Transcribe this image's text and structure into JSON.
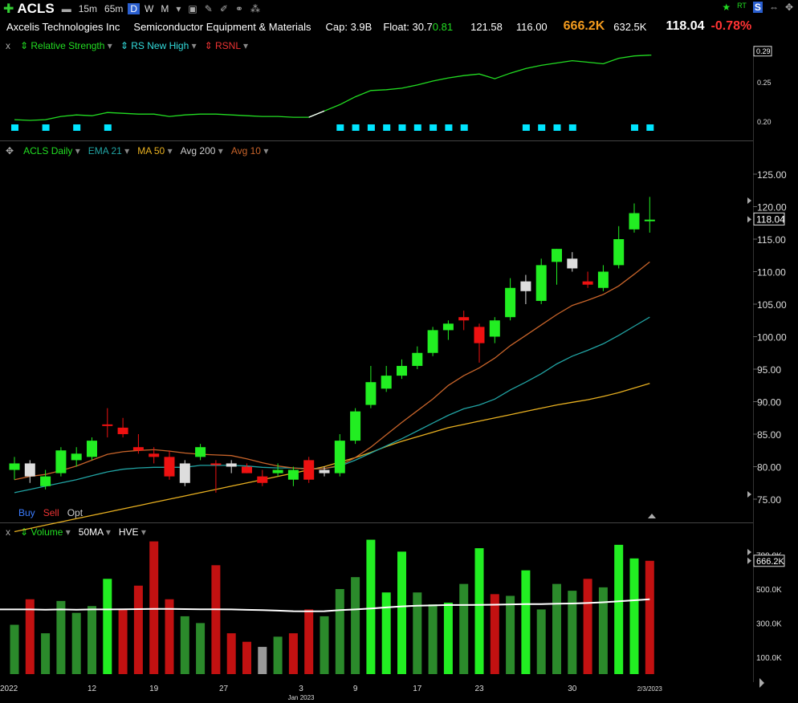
{
  "header": {
    "symbol": "ACLS",
    "timeframes": [
      "15m",
      "65m",
      "D",
      "W",
      "M"
    ],
    "active_timeframe": "D",
    "icons": [
      "plus-icon",
      "chart-type-icon",
      "tv-icon",
      "edit-icon",
      "pencil-icon",
      "link-icon",
      "share-icon"
    ],
    "right_icons": [
      "star-icon",
      "rt-icon",
      "s-icon",
      "pin-icon",
      "move-icon"
    ]
  },
  "info": {
    "company": "Axcelis Technologies Inc",
    "industry": "Semiconductor Equipment & Materials",
    "cap": "Cap: 3.9B",
    "float": "Float: 30.7",
    "float_change": "0.81",
    "high": "121.58",
    "low": "116.00",
    "volume": "666.2K",
    "avg_volume": "632.5K",
    "price": "118.04",
    "change_pct": "-0.78%"
  },
  "rs_panel": {
    "close_label": "x",
    "items": [
      "Relative Strength",
      "RS New High",
      "RSNL"
    ],
    "axis": [
      "0.25",
      "0.20"
    ],
    "current": "0.29",
    "colors": {
      "line": "#22dd22",
      "newhigh": "#00e5ff",
      "rsnl": "#e03030"
    }
  },
  "price_panel": {
    "items": [
      "ACLS Daily",
      "EMA 21",
      "MA 50",
      "Avg 200",
      "Avg 10"
    ],
    "axis": [
      "125.00",
      "120.00",
      "115.00",
      "110.00",
      "105.00",
      "100.00",
      "95.00",
      "90.00",
      "85.00",
      "80.00",
      "75.00"
    ],
    "current": "118.04",
    "buttons": [
      "Buy",
      "Sell",
      "Opt"
    ],
    "colors": {
      "up": "#22ee22",
      "down": "#ee1111",
      "neutral": "#dddddd",
      "ema21": "#21a3a3",
      "ma50": "#e8b020",
      "avg10": "#c8642a"
    }
  },
  "volume_panel": {
    "close_label": "x",
    "items": [
      "Volume",
      "50MA",
      "HVE"
    ],
    "axis": [
      "700.0K",
      "500.0K",
      "300.0K",
      "100.0K"
    ],
    "current": "666.2K"
  },
  "x_axis": {
    "labels": [
      "2022",
      "12",
      "19",
      "27",
      "3",
      "9",
      "17",
      "23",
      "30",
      "2/3/2023"
    ],
    "sublabel": "Jan 2023"
  },
  "chart_data": {
    "type": "candlestick",
    "candles": [
      {
        "o": 79.5,
        "h": 81.5,
        "l": 78.0,
        "c": 80.5,
        "color": "up"
      },
      {
        "o": 80.5,
        "h": 81.0,
        "l": 77.5,
        "c": 78.5,
        "color": "neutral"
      },
      {
        "o": 77.0,
        "h": 79.5,
        "l": 76.5,
        "c": 78.5,
        "color": "up"
      },
      {
        "o": 79.0,
        "h": 83.0,
        "l": 78.5,
        "c": 82.5,
        "color": "up"
      },
      {
        "o": 81.0,
        "h": 83.0,
        "l": 80.0,
        "c": 82.0,
        "color": "up"
      },
      {
        "o": 81.5,
        "h": 84.5,
        "l": 81.0,
        "c": 84.0,
        "color": "up"
      },
      {
        "o": 86.5,
        "h": 89.0,
        "l": 84.5,
        "c": 86.5,
        "color": "down"
      },
      {
        "o": 86.0,
        "h": 87.5,
        "l": 84.5,
        "c": 85.0,
        "color": "down"
      },
      {
        "o": 83.0,
        "h": 85.0,
        "l": 82.0,
        "c": 82.5,
        "color": "down"
      },
      {
        "o": 82.0,
        "h": 83.0,
        "l": 80.5,
        "c": 81.5,
        "color": "down"
      },
      {
        "o": 81.5,
        "h": 82.5,
        "l": 78.0,
        "c": 78.5,
        "color": "down"
      },
      {
        "o": 77.5,
        "h": 81.0,
        "l": 77.0,
        "c": 80.5,
        "color": "neutral"
      },
      {
        "o": 81.5,
        "h": 83.5,
        "l": 81.0,
        "c": 83.0,
        "color": "up"
      },
      {
        "o": 80.5,
        "h": 81.0,
        "l": 76.0,
        "c": 80.5,
        "color": "down"
      },
      {
        "o": 80.0,
        "h": 81.0,
        "l": 79.0,
        "c": 80.5,
        "color": "neutral"
      },
      {
        "o": 80.0,
        "h": 80.5,
        "l": 79.0,
        "c": 79.0,
        "color": "down"
      },
      {
        "o": 78.5,
        "h": 79.5,
        "l": 77.0,
        "c": 77.5,
        "color": "down"
      },
      {
        "o": 79.0,
        "h": 80.5,
        "l": 78.5,
        "c": 79.5,
        "color": "up"
      },
      {
        "o": 78.0,
        "h": 80.0,
        "l": 77.0,
        "c": 79.5,
        "color": "up"
      },
      {
        "o": 81.0,
        "h": 81.5,
        "l": 77.5,
        "c": 78.0,
        "color": "down"
      },
      {
        "o": 79.0,
        "h": 80.0,
        "l": 78.5,
        "c": 79.5,
        "color": "neutral"
      },
      {
        "o": 79.0,
        "h": 85.0,
        "l": 78.5,
        "c": 84.0,
        "color": "up"
      },
      {
        "o": 84.0,
        "h": 89.0,
        "l": 83.5,
        "c": 88.5,
        "color": "up"
      },
      {
        "o": 89.5,
        "h": 95.5,
        "l": 89.0,
        "c": 93.0,
        "color": "up"
      },
      {
        "o": 92.0,
        "h": 95.5,
        "l": 91.5,
        "c": 94.0,
        "color": "up"
      },
      {
        "o": 94.0,
        "h": 96.5,
        "l": 93.5,
        "c": 95.5,
        "color": "up"
      },
      {
        "o": 95.5,
        "h": 98.5,
        "l": 95.0,
        "c": 97.5,
        "color": "up"
      },
      {
        "o": 97.5,
        "h": 101.5,
        "l": 97.0,
        "c": 101.0,
        "color": "up"
      },
      {
        "o": 101.0,
        "h": 102.5,
        "l": 99.5,
        "c": 102.0,
        "color": "up"
      },
      {
        "o": 103.0,
        "h": 104.0,
        "l": 101.0,
        "c": 102.5,
        "color": "down"
      },
      {
        "o": 101.5,
        "h": 102.0,
        "l": 96.0,
        "c": 99.0,
        "color": "down"
      },
      {
        "o": 100.0,
        "h": 103.0,
        "l": 99.0,
        "c": 102.5,
        "color": "up"
      },
      {
        "o": 103.0,
        "h": 109.0,
        "l": 102.5,
        "c": 107.5,
        "color": "up"
      },
      {
        "o": 107.0,
        "h": 109.5,
        "l": 105.0,
        "c": 108.5,
        "color": "neutral"
      },
      {
        "o": 105.5,
        "h": 112.0,
        "l": 105.0,
        "c": 111.0,
        "color": "up"
      },
      {
        "o": 111.5,
        "h": 113.5,
        "l": 108.0,
        "c": 113.5,
        "color": "up"
      },
      {
        "o": 112.0,
        "h": 113.0,
        "l": 110.0,
        "c": 110.5,
        "color": "neutral"
      },
      {
        "o": 108.5,
        "h": 110.0,
        "l": 107.5,
        "c": 108.0,
        "color": "down"
      },
      {
        "o": 107.5,
        "h": 111.0,
        "l": 107.0,
        "c": 110.0,
        "color": "up"
      },
      {
        "o": 111.0,
        "h": 117.0,
        "l": 110.5,
        "c": 115.0,
        "color": "up"
      },
      {
        "o": 116.5,
        "h": 120.5,
        "l": 116.0,
        "c": 119.0,
        "color": "up"
      },
      {
        "o": 118.0,
        "h": 121.5,
        "l": 116.0,
        "c": 118.0,
        "color": "up"
      }
    ],
    "volume": [
      {
        "v": 290,
        "color": "dgreen"
      },
      {
        "v": 440,
        "color": "red"
      },
      {
        "v": 240,
        "color": "dgreen"
      },
      {
        "v": 430,
        "color": "dgreen"
      },
      {
        "v": 360,
        "color": "dgreen"
      },
      {
        "v": 400,
        "color": "dgreen"
      },
      {
        "v": 560,
        "color": "green"
      },
      {
        "v": 380,
        "color": "red"
      },
      {
        "v": 520,
        "color": "red"
      },
      {
        "v": 780,
        "color": "red"
      },
      {
        "v": 440,
        "color": "red"
      },
      {
        "v": 340,
        "color": "dgreen"
      },
      {
        "v": 300,
        "color": "dgreen"
      },
      {
        "v": 640,
        "color": "red"
      },
      {
        "v": 240,
        "color": "red"
      },
      {
        "v": 190,
        "color": "red"
      },
      {
        "v": 160,
        "color": "gray"
      },
      {
        "v": 220,
        "color": "dgreen"
      },
      {
        "v": 240,
        "color": "red"
      },
      {
        "v": 380,
        "color": "red"
      },
      {
        "v": 340,
        "color": "dgreen"
      },
      {
        "v": 500,
        "color": "dgreen"
      },
      {
        "v": 570,
        "color": "dgreen"
      },
      {
        "v": 790,
        "color": "green"
      },
      {
        "v": 480,
        "color": "green"
      },
      {
        "v": 720,
        "color": "green"
      },
      {
        "v": 480,
        "color": "dgreen"
      },
      {
        "v": 410,
        "color": "dgreen"
      },
      {
        "v": 420,
        "color": "green"
      },
      {
        "v": 530,
        "color": "dgreen"
      },
      {
        "v": 740,
        "color": "green"
      },
      {
        "v": 470,
        "color": "red"
      },
      {
        "v": 460,
        "color": "dgreen"
      },
      {
        "v": 610,
        "color": "green"
      },
      {
        "v": 380,
        "color": "dgreen"
      },
      {
        "v": 530,
        "color": "dgreen"
      },
      {
        "v": 490,
        "color": "dgreen"
      },
      {
        "v": 560,
        "color": "red"
      },
      {
        "v": 510,
        "color": "dgreen"
      },
      {
        "v": 760,
        "color": "green"
      },
      {
        "v": 680,
        "color": "green"
      },
      {
        "v": 666,
        "color": "red"
      }
    ],
    "vol_ma": [
      380,
      380,
      379,
      380,
      379,
      380,
      380,
      381,
      382,
      383,
      383,
      382,
      381,
      381,
      380,
      378,
      376,
      373,
      370,
      369,
      370,
      376,
      380,
      386,
      392,
      398,
      402,
      404,
      406,
      406,
      407,
      408,
      410,
      412,
      412,
      414,
      415,
      418,
      422,
      428,
      434,
      440
    ],
    "ema21": [
      76.0,
      76.5,
      77.0,
      77.5,
      78.0,
      78.6,
      79.2,
      79.6,
      79.8,
      79.9,
      79.9,
      79.9,
      80.2,
      80.2,
      80.2,
      80.1,
      79.9,
      79.8,
      79.8,
      79.7,
      79.7,
      80.1,
      81.0,
      82.1,
      83.2,
      84.3,
      85.5,
      86.7,
      87.9,
      88.9,
      89.5,
      90.4,
      91.8,
      93.0,
      94.3,
      95.8,
      97.0,
      97.9,
      98.9,
      100.2,
      101.6,
      103.0
    ],
    "ma50": [
      70.0,
      70.5,
      71.0,
      71.5,
      72.0,
      72.5,
      73.0,
      73.5,
      74.0,
      74.5,
      75.0,
      75.5,
      76.0,
      76.5,
      77.0,
      77.5,
      78.0,
      78.5,
      79.0,
      79.5,
      80.0,
      80.7,
      81.4,
      82.2,
      83.1,
      83.9,
      84.6,
      85.3,
      86.0,
      86.5,
      87.0,
      87.5,
      88.0,
      88.5,
      89.0,
      89.5,
      89.9,
      90.3,
      90.8,
      91.4,
      92.1,
      92.8
    ],
    "avg10": [
      78.0,
      78.5,
      78.8,
      79.4,
      80.1,
      81.0,
      81.9,
      82.3,
      82.5,
      82.6,
      82.4,
      82.1,
      81.9,
      81.8,
      81.7,
      81.2,
      80.6,
      80.1,
      79.8,
      79.6,
      79.7,
      80.2,
      81.4,
      83.0,
      84.9,
      86.8,
      88.6,
      90.4,
      92.5,
      94.0,
      95.2,
      96.7,
      98.6,
      100.2,
      101.8,
      103.4,
      104.8,
      105.6,
      106.5,
      107.8,
      109.6,
      111.5
    ],
    "rs_line": [
      0.203,
      0.202,
      0.203,
      0.207,
      0.209,
      0.208,
      0.212,
      0.211,
      0.21,
      0.21,
      0.207,
      0.209,
      0.21,
      0.21,
      0.209,
      0.208,
      0.207,
      0.207,
      0.206,
      0.206,
      0.214,
      0.222,
      0.232,
      0.24,
      0.241,
      0.243,
      0.247,
      0.252,
      0.256,
      0.259,
      0.261,
      0.255,
      0.262,
      0.268,
      0.272,
      0.275,
      0.278,
      0.276,
      0.274,
      0.281,
      0.284,
      0.285
    ],
    "rs_newhigh_days": [
      0,
      2,
      4,
      6,
      21,
      22,
      23,
      24,
      25,
      26,
      27,
      28,
      29,
      33,
      34,
      35,
      36,
      40,
      41
    ]
  }
}
